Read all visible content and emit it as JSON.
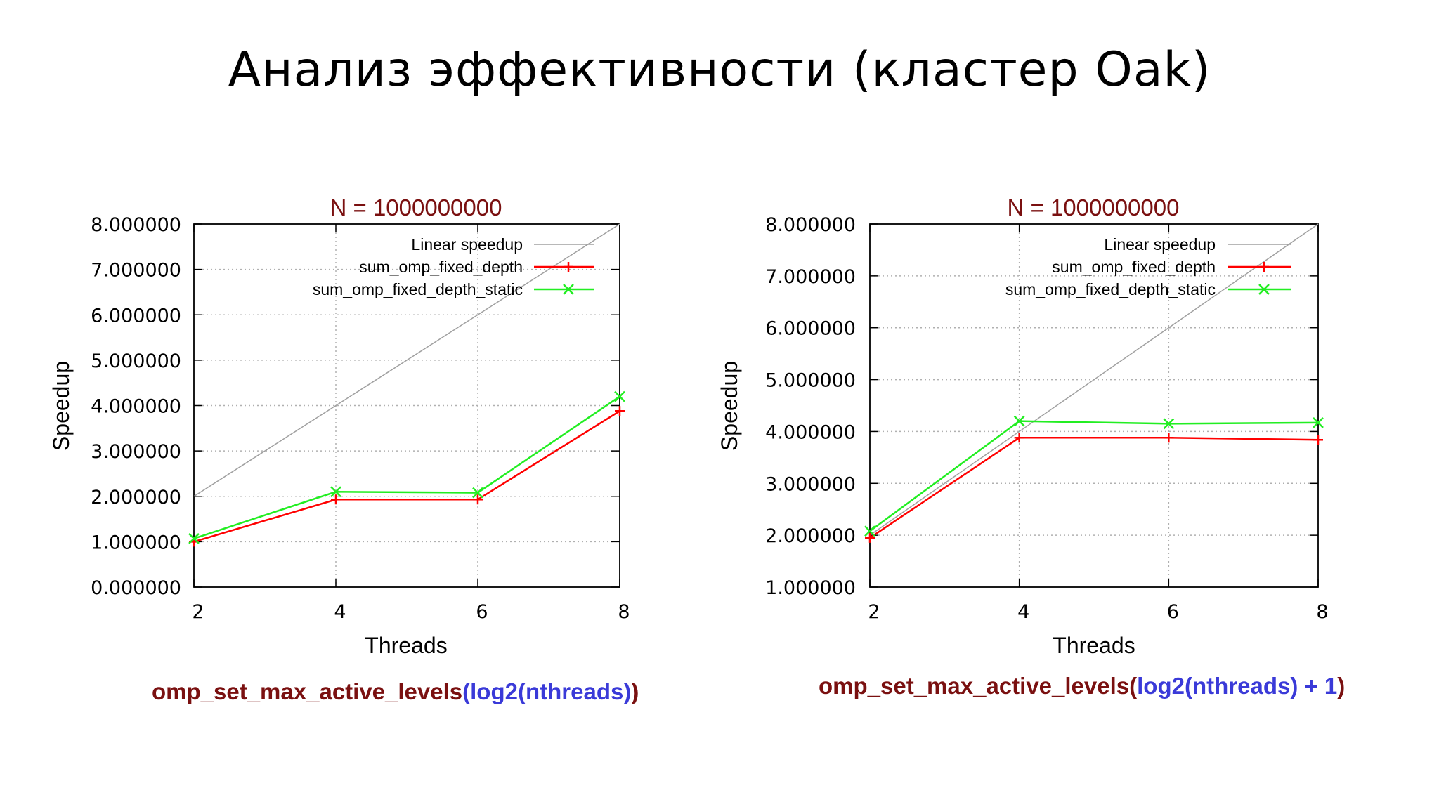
{
  "slide": {
    "title": "Анализ эффективности (кластер Oak)"
  },
  "captions": [
    {
      "fn": "omp_set_max_active_levels",
      "open": "(",
      "arg": "log2(nthreads)",
      "close": ")"
    },
    {
      "fn": "omp_set_max_active_levels",
      "open": "(",
      "arg": "log2(nthreads) + 1",
      "close": ")"
    }
  ],
  "colors": {
    "linear": "#a0a0a0",
    "fixed_depth": "#ff0000",
    "fixed_depth_static": "#22ee22",
    "title_text": "#7a1010"
  },
  "chart_data": [
    {
      "type": "line",
      "title": "N = 1000000000",
      "xlabel": "Threads",
      "ylabel": "Speedup",
      "x": [
        2,
        4,
        6,
        8
      ],
      "xticks": [
        "2",
        "4",
        "6",
        "8"
      ],
      "xlim": [
        2,
        8
      ],
      "ylim": [
        0,
        8
      ],
      "yticks": [
        "0.000000",
        "1.000000",
        "2.000000",
        "3.000000",
        "4.000000",
        "5.000000",
        "6.000000",
        "7.000000",
        "8.000000"
      ],
      "ytick_values": [
        0,
        1,
        2,
        3,
        4,
        5,
        6,
        7,
        8
      ],
      "grid": true,
      "legend_position": "top-right",
      "series": [
        {
          "name": "Linear speedup",
          "values": [
            2,
            4,
            6,
            8
          ],
          "marker": "none"
        },
        {
          "name": "sum_omp_fixed_depth",
          "values": [
            1.0,
            1.93,
            1.93,
            3.88
          ],
          "marker": "plus"
        },
        {
          "name": "sum_omp_fixed_depth_static",
          "values": [
            1.07,
            2.1,
            2.08,
            4.2
          ],
          "marker": "cross"
        }
      ]
    },
    {
      "type": "line",
      "title": "N = 1000000000",
      "xlabel": "Threads",
      "ylabel": "Speedup",
      "x": [
        2,
        4,
        6,
        8
      ],
      "xticks": [
        "2",
        "4",
        "6",
        "8"
      ],
      "xlim": [
        2,
        8
      ],
      "ylim": [
        1,
        8
      ],
      "yticks": [
        "1.000000",
        "2.000000",
        "3.000000",
        "4.000000",
        "5.000000",
        "6.000000",
        "7.000000",
        "8.000000"
      ],
      "ytick_values": [
        1,
        2,
        3,
        4,
        5,
        6,
        7,
        8
      ],
      "grid": true,
      "legend_position": "top-right",
      "series": [
        {
          "name": "Linear speedup",
          "values": [
            2,
            4,
            6,
            8
          ],
          "marker": "none"
        },
        {
          "name": "sum_omp_fixed_depth",
          "values": [
            1.95,
            3.88,
            3.88,
            3.84
          ],
          "marker": "plus"
        },
        {
          "name": "sum_omp_fixed_depth_static",
          "values": [
            2.08,
            4.2,
            4.15,
            4.17
          ],
          "marker": "cross"
        }
      ]
    }
  ]
}
